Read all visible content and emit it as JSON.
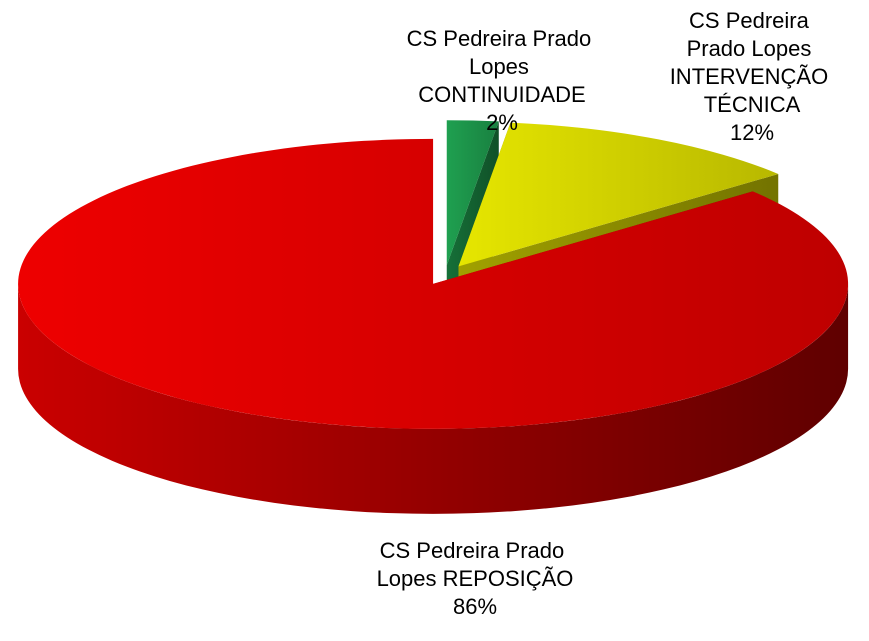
{
  "chart_data": {
    "type": "pie",
    "categories": [
      "CS Pedreira Prado Lopes CONTINUIDADE",
      "CS Pedreira Prado Lopes INTERVENÇÃO TÉCNICA",
      "CS Pedreira Prado Lopes REPOSIÇÃO"
    ],
    "values": [
      2,
      12,
      86
    ],
    "value_labels": [
      "2%",
      "12%",
      "86%"
    ],
    "colors": [
      "#1fa050",
      "#e6e600",
      "#ee0000"
    ]
  }
}
